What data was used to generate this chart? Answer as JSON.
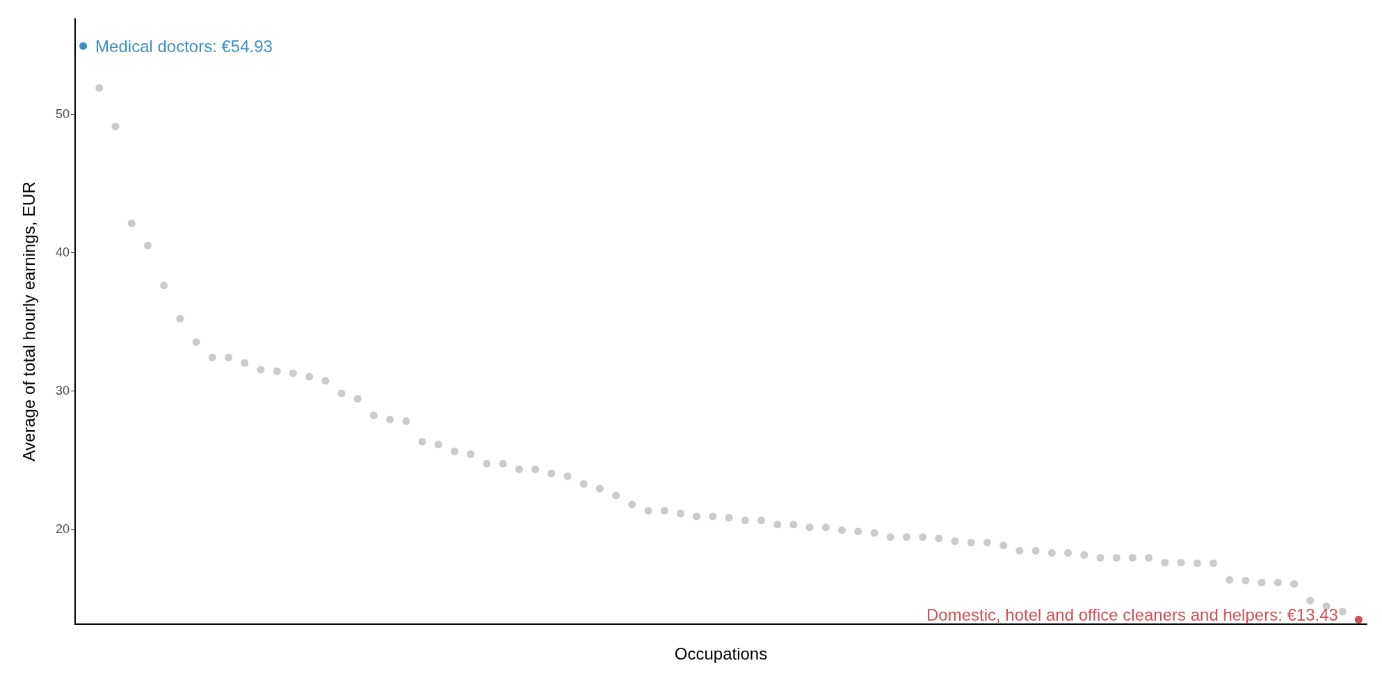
{
  "chart_data": {
    "type": "scatter",
    "xlabel": "Occupations",
    "ylabel": "Average of total hourly earnings, EUR",
    "categories": [
      null,
      null,
      null,
      null,
      null,
      null,
      null,
      null,
      null,
      null,
      null,
      null,
      null,
      null,
      null,
      null,
      null,
      null,
      null,
      null,
      null,
      null,
      null,
      null,
      null,
      null,
      null,
      null,
      null,
      null,
      null,
      null,
      null,
      null,
      null,
      null,
      null,
      null,
      null,
      null,
      null,
      null,
      null,
      null,
      null,
      null,
      null,
      null,
      null,
      null,
      null,
      null,
      null,
      null,
      null,
      null,
      null,
      null,
      null,
      null,
      null,
      null,
      null,
      null,
      null,
      null,
      null,
      null,
      null,
      null,
      null,
      null,
      null,
      null,
      null,
      null,
      null,
      null,
      null,
      null
    ],
    "series": [
      {
        "color": "#0b72b5",
        "values": [
          54.93,
          null,
          null,
          null,
          null,
          null,
          null,
          null,
          null,
          null,
          null,
          null,
          null,
          null,
          null,
          null,
          null,
          null,
          null,
          null,
          null,
          null,
          null,
          null,
          null,
          null,
          null,
          null,
          null,
          null,
          null,
          null,
          null,
          null,
          null,
          null,
          null,
          null,
          null,
          null,
          null,
          null,
          null,
          null,
          null,
          null,
          null,
          null,
          null,
          null,
          null,
          null,
          null,
          null,
          null,
          null,
          null,
          null,
          null,
          null,
          null,
          null,
          null,
          null,
          null,
          null,
          null,
          null,
          null,
          null,
          null,
          null,
          null,
          null,
          null,
          null,
          null,
          null,
          null,
          null
        ],
        "value_labels": [
          "Medical doctors: €54.93",
          null,
          null,
          null,
          null,
          null,
          null,
          null,
          null,
          null,
          null,
          null,
          null,
          null,
          null,
          null,
          null,
          null,
          null,
          null,
          null,
          null,
          null,
          null,
          null,
          null,
          null,
          null,
          null,
          null,
          null,
          null,
          null,
          null,
          null,
          null,
          null,
          null,
          null,
          null,
          null,
          null,
          null,
          null,
          null,
          null,
          null,
          null,
          null,
          null,
          null,
          null,
          null,
          null,
          null,
          null,
          null,
          null,
          null,
          null,
          null,
          null,
          null,
          null,
          null,
          null,
          null,
          null,
          null,
          null,
          null,
          null,
          null,
          null,
          null,
          null,
          null,
          null,
          null,
          null
        ]
      },
      {
        "color": "#bebebe",
        "values": [
          null,
          51.9,
          49.1,
          42.1,
          40.5,
          37.6,
          35.2,
          33.5,
          32.4,
          32.4,
          32.0,
          31.5,
          31.4,
          31.25,
          31.0,
          30.7,
          29.8,
          29.4,
          28.2,
          27.9,
          27.8,
          26.3,
          26.1,
          25.6,
          25.4,
          24.7,
          24.7,
          24.3,
          24.3,
          24.0,
          23.8,
          23.25,
          22.9,
          22.4,
          21.75,
          21.3,
          21.3,
          21.1,
          20.9,
          20.9,
          20.8,
          20.6,
          20.6,
          20.3,
          20.3,
          20.1,
          20.1,
          19.9,
          19.8,
          19.7,
          19.4,
          19.4,
          19.4,
          19.3,
          19.1,
          19.0,
          19.0,
          18.8,
          18.4,
          18.4,
          18.25,
          18.25,
          18.1,
          17.9,
          17.9,
          17.9,
          17.9,
          17.55,
          17.55,
          17.5,
          17.5,
          16.3,
          16.25,
          16.1,
          16.1,
          16.0,
          14.8,
          14.4,
          14.0,
          null
        ]
      },
      {
        "color": "#c8202b",
        "values": [
          null,
          null,
          null,
          null,
          null,
          null,
          null,
          null,
          null,
          null,
          null,
          null,
          null,
          null,
          null,
          null,
          null,
          null,
          null,
          null,
          null,
          null,
          null,
          null,
          null,
          null,
          null,
          null,
          null,
          null,
          null,
          null,
          null,
          null,
          null,
          null,
          null,
          null,
          null,
          null,
          null,
          null,
          null,
          null,
          null,
          null,
          null,
          null,
          null,
          null,
          null,
          null,
          null,
          null,
          null,
          null,
          null,
          null,
          null,
          null,
          null,
          null,
          null,
          null,
          null,
          null,
          null,
          null,
          null,
          null,
          null,
          null,
          null,
          null,
          null,
          null,
          null,
          null,
          null,
          13.43
        ],
        "value_labels": [
          null,
          null,
          null,
          null,
          null,
          null,
          null,
          null,
          null,
          null,
          null,
          null,
          null,
          null,
          null,
          null,
          null,
          null,
          null,
          null,
          null,
          null,
          null,
          null,
          null,
          null,
          null,
          null,
          null,
          null,
          null,
          null,
          null,
          null,
          null,
          null,
          null,
          null,
          null,
          null,
          null,
          null,
          null,
          null,
          null,
          null,
          null,
          null,
          null,
          null,
          null,
          null,
          null,
          null,
          null,
          null,
          null,
          null,
          null,
          null,
          null,
          null,
          null,
          null,
          null,
          null,
          null,
          null,
          null,
          null,
          null,
          null,
          null,
          null,
          null,
          null,
          null,
          null,
          null,
          "Domestic, hotel and office cleaners and helpers: €13.43"
        ]
      }
    ],
    "ylim": [
      13.1,
      56.9
    ],
    "yticks": [
      20,
      30,
      40,
      50
    ],
    "grid": false,
    "marker": "circle",
    "tick_labels": "y"
  }
}
